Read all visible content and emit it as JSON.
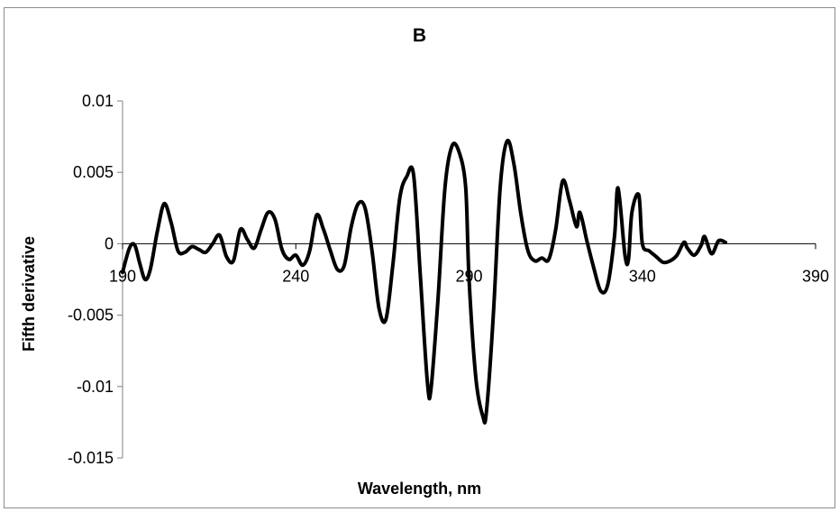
{
  "chart_data": {
    "type": "line",
    "title": "B",
    "xlabel": "Wavelength, nm",
    "ylabel": "Fifth derivative",
    "xlim": [
      190,
      390
    ],
    "ylim": [
      -0.015,
      0.01
    ],
    "x_ticks": [
      190,
      240,
      290,
      340,
      390
    ],
    "y_ticks": [
      0.01,
      0.005,
      0,
      -0.005,
      -0.01,
      -0.015
    ],
    "x_tick_labels": [
      "190",
      "240",
      "290",
      "340",
      "390"
    ],
    "y_tick_labels": [
      "0.01",
      "0.005",
      "0",
      "-0.005",
      "-0.01",
      "-0.015"
    ],
    "grid": false,
    "legend": "none",
    "line_color": "#000000",
    "series": [
      {
        "x": [
          190,
          192,
          193.5,
          195,
          196.5,
          198,
          200,
          202,
          204,
          206,
          208,
          210,
          212,
          214,
          216,
          218,
          220,
          222,
          224,
          226,
          228,
          230,
          232,
          234,
          236,
          238,
          240,
          242,
          244,
          246,
          248,
          250,
          252,
          254,
          256,
          258,
          260,
          262,
          264,
          266,
          268,
          270,
          272,
          274,
          276,
          278,
          279,
          281,
          283,
          285,
          287,
          289,
          290,
          292,
          294,
          295,
          297,
          299,
          301,
          303,
          305,
          307,
          309,
          311,
          313,
          315,
          317,
          319,
          321,
          322,
          324,
          326,
          328,
          330,
          332,
          333,
          335,
          336,
          337,
          339,
          340,
          342,
          344,
          346,
          348,
          350,
          352,
          353,
          355,
          357,
          358,
          360,
          362,
          364
        ],
        "y": [
          -0.002,
          -0.0003,
          -0.0001,
          -0.0014,
          -0.0025,
          -0.0018,
          0.0008,
          0.0028,
          0.0015,
          -0.0005,
          -0.0006,
          -0.0002,
          -0.0004,
          -0.0006,
          0.0,
          0.0006,
          -0.0009,
          -0.0012,
          0.001,
          0.0003,
          -0.0003,
          0.001,
          0.0022,
          0.0017,
          -0.0004,
          -0.0011,
          -0.0008,
          -0.0015,
          -0.0005,
          0.002,
          0.001,
          -0.0005,
          -0.0018,
          -0.0015,
          0.0012,
          0.0028,
          0.0025,
          -0.0005,
          -0.0045,
          -0.0053,
          -0.0015,
          0.0032,
          0.0047,
          0.0048,
          -0.0025,
          -0.0098,
          -0.0102,
          -0.004,
          0.0038,
          0.0068,
          0.0065,
          0.004,
          -0.0025,
          -0.0095,
          -0.0121,
          -0.0118,
          -0.005,
          0.004,
          0.0072,
          0.0055,
          0.002,
          -0.0005,
          -0.0012,
          -0.001,
          -0.0011,
          0.001,
          0.0044,
          0.003,
          0.0012,
          0.0022,
          0.0002,
          -0.0017,
          -0.0033,
          -0.0029,
          0.0006,
          0.0039,
          -0.0008,
          -0.0011,
          0.0022,
          0.0034,
          0.0,
          -0.0005,
          -0.0009,
          -0.0013,
          -0.0012,
          -0.0008,
          0.0001,
          -0.0003,
          -0.0008,
          -0.0001,
          0.0005,
          -0.0007,
          0.0002,
          0.0001
        ]
      }
    ]
  }
}
